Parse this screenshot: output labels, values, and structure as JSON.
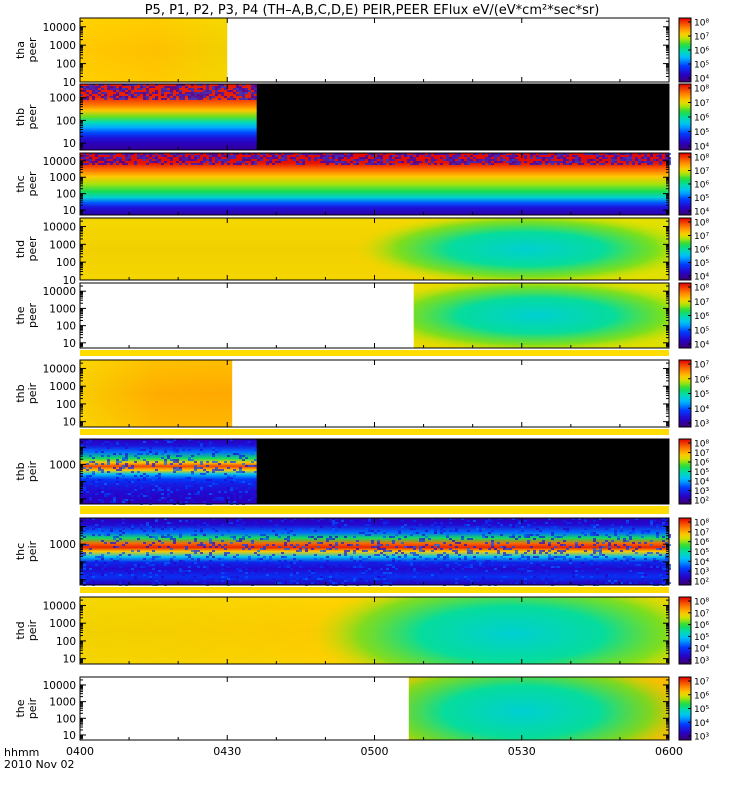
{
  "title": "P5, P1, P2, P3, P4 (TH–A,B,C,D,E) PEIR,PEER EFlux eV/(eV*cm²*sec*sr)",
  "footer": {
    "time_label": "hhmm",
    "date_label": "2010 Nov 02"
  },
  "chart_data": {
    "type": "heatmap",
    "x_unit": "hhmm",
    "x_range": [
      "0400",
      "0600"
    ],
    "x_tick_labels": [
      "0400",
      "0430",
      "0500",
      "0530",
      "0600"
    ],
    "y_scale": "log",
    "z_scale": "log",
    "panels": [
      {
        "ylabel": [
          "tha",
          "peer"
        ],
        "yticks": [
          "10",
          "100",
          "1000",
          "10000"
        ],
        "ylim": [
          10,
          30000
        ],
        "cbar_ticks": [
          "10⁴",
          "10⁵",
          "10⁶",
          "10⁷",
          "10⁸"
        ],
        "data_start": "0400",
        "data_end": "0430",
        "gap_color": "#ffffff",
        "style": "smooth",
        "hue_start": 0.76,
        "hue_end": 0.74,
        "dip": 0
      },
      {
        "ylabel": [
          "thb",
          "peer"
        ],
        "yticks": [
          "10",
          "100",
          "1000"
        ],
        "ylim": [
          5,
          4000
        ],
        "cbar_ticks": [
          "10⁴",
          "10⁵",
          "10⁶",
          "10⁷",
          "10⁸"
        ],
        "data_start": "0400",
        "data_end": "0436",
        "gap_color": "#000000",
        "style": "bands",
        "bands": [
          {
            "f": 0.0,
            "v": 0.97
          },
          {
            "f": 0.2,
            "v": 0.96
          },
          {
            "f": 0.32,
            "v": 0.86
          },
          {
            "f": 0.4,
            "v": 0.76
          },
          {
            "f": 0.5,
            "v": 0.62
          },
          {
            "f": 0.58,
            "v": 0.48
          },
          {
            "f": 0.66,
            "v": 0.36
          },
          {
            "f": 0.74,
            "v": 0.26
          },
          {
            "f": 0.82,
            "v": 0.16
          },
          {
            "f": 0.9,
            "v": 0.1
          },
          {
            "f": 1.0,
            "v": 0.06
          }
        ],
        "noise_from": 0.78
      },
      {
        "ylabel": [
          "thc",
          "peer"
        ],
        "yticks": [
          "10",
          "100",
          "1000",
          "10000"
        ],
        "ylim": [
          5,
          30000
        ],
        "cbar_ticks": [
          "10⁴",
          "10⁵",
          "10⁶",
          "10⁷",
          "10⁸"
        ],
        "data_start": "0400",
        "data_end": "0600",
        "gap_color": "#000000",
        "style": "bands",
        "bands": [
          {
            "f": 0.0,
            "v": 0.99
          },
          {
            "f": 0.16,
            "v": 0.98
          },
          {
            "f": 0.26,
            "v": 0.88
          },
          {
            "f": 0.38,
            "v": 0.76
          },
          {
            "f": 0.5,
            "v": 0.66
          },
          {
            "f": 0.62,
            "v": 0.56
          },
          {
            "f": 0.72,
            "v": 0.44
          },
          {
            "f": 0.8,
            "v": 0.28
          },
          {
            "f": 0.88,
            "v": 0.16
          },
          {
            "f": 1.0,
            "v": 0.08
          }
        ],
        "noise_from": 0.82
      },
      {
        "ylabel": [
          "thd",
          "peer"
        ],
        "yticks": [
          "10",
          "100",
          "1000",
          "10000"
        ],
        "ylim": [
          10,
          30000
        ],
        "cbar_ticks": [
          "10⁴",
          "10⁵",
          "10⁶",
          "10⁷",
          "10⁸"
        ],
        "data_start": "0400",
        "data_end": "0600",
        "gap_color": "#ffffff",
        "style": "smooth",
        "hue_start": 0.74,
        "hue_end": 0.7,
        "dip": 0.42,
        "dip_center": "0531",
        "dip_halfwidth_min": 22,
        "dip_yc": 0.5,
        "dip_ys": 0.6
      },
      {
        "ylabel": [
          "the",
          "peer"
        ],
        "yticks": [
          "10",
          "100",
          "1000",
          "10000"
        ],
        "ylim": [
          5,
          30000
        ],
        "cbar_ticks": [
          "10⁴",
          "10⁵",
          "10⁶",
          "10⁷",
          "10⁸"
        ],
        "data_start": "0508",
        "data_end": "0600",
        "gap_color": "#ffffff",
        "style": "smooth",
        "hue_start": 0.72,
        "hue_end": 0.7,
        "dip": 0.42,
        "dip_center": "0533",
        "dip_halfwidth_min": 22,
        "dip_yc": 0.5,
        "dip_ys": 0.6
      },
      {
        "ylabel": [
          "thb",
          "peir"
        ],
        "yticks": [
          "10",
          "100",
          "1000",
          "10000"
        ],
        "ylim": [
          5,
          30000
        ],
        "cbar_ticks": [
          "10³",
          "10⁴",
          "10⁵",
          "10⁶",
          "10⁷"
        ],
        "data_start": "0400",
        "data_end": "0431",
        "gap_color": "#ffffff",
        "style": "smooth",
        "hue_start": 0.75,
        "hue_end": 0.8,
        "dip": 0
      },
      {
        "ylabel": [
          "thb",
          "peir"
        ],
        "yticks": [
          "1000"
        ],
        "ylim": [
          5,
          30000
        ],
        "cbar_ticks": [
          "10²",
          "10³",
          "10⁴",
          "10⁵",
          "10⁶",
          "10⁷",
          "10⁸"
        ],
        "data_start": "0400",
        "data_end": "0436",
        "gap_color": "#000000",
        "style": "bands",
        "bands": [
          {
            "f": 0.0,
            "v": 0.1
          },
          {
            "f": 0.1,
            "v": 0.16
          },
          {
            "f": 0.2,
            "v": 0.3
          },
          {
            "f": 0.3,
            "v": 0.55
          },
          {
            "f": 0.36,
            "v": 0.75
          },
          {
            "f": 0.42,
            "v": 0.92
          },
          {
            "f": 0.48,
            "v": 0.75
          },
          {
            "f": 0.54,
            "v": 0.4
          },
          {
            "f": 0.62,
            "v": 0.24
          },
          {
            "f": 0.7,
            "v": 0.18
          },
          {
            "f": 0.82,
            "v": 0.14
          },
          {
            "f": 1.0,
            "v": 0.1
          }
        ],
        "noise_from": 0.0
      },
      {
        "ylabel": [
          "thc",
          "peir"
        ],
        "yticks": [
          "1000"
        ],
        "ylim": [
          5,
          30000
        ],
        "cbar_ticks": [
          "10²",
          "10³",
          "10⁴",
          "10⁵",
          "10⁶",
          "10⁷",
          "10⁸"
        ],
        "data_start": "0400",
        "data_end": "0600",
        "gap_color": "#ffffff",
        "style": "bands",
        "bands": [
          {
            "f": 0.0,
            "v": 0.1
          },
          {
            "f": 0.1,
            "v": 0.14
          },
          {
            "f": 0.22,
            "v": 0.3
          },
          {
            "f": 0.3,
            "v": 0.55
          },
          {
            "f": 0.38,
            "v": 0.88
          },
          {
            "f": 0.44,
            "v": 0.96
          },
          {
            "f": 0.5,
            "v": 0.75
          },
          {
            "f": 0.58,
            "v": 0.4
          },
          {
            "f": 0.66,
            "v": 0.2
          },
          {
            "f": 0.76,
            "v": 0.14
          },
          {
            "f": 0.88,
            "v": 0.22
          },
          {
            "f": 1.0,
            "v": 0.1
          }
        ],
        "noise_from": 0.0
      },
      {
        "ylabel": [
          "thd",
          "peir"
        ],
        "yticks": [
          "10",
          "100",
          "1000",
          "10000"
        ],
        "ylim": [
          5,
          30000
        ],
        "cbar_ticks": [
          "10³",
          "10⁴",
          "10⁵",
          "10⁶",
          "10⁷",
          "10⁸"
        ],
        "data_start": "0400",
        "data_end": "0600",
        "gap_color": "#ffffff",
        "style": "smooth",
        "hue_start": 0.74,
        "hue_end": 0.74,
        "dip": 0.36,
        "dip_center": "0528",
        "dip_halfwidth_min": 26,
        "dip_yc": 0.55,
        "dip_ys": 0.9
      },
      {
        "ylabel": [
          "the",
          "peir"
        ],
        "yticks": [
          "10",
          "100",
          "1000",
          "10000"
        ],
        "ylim": [
          5,
          30000
        ],
        "cbar_ticks": [
          "10³",
          "10⁴",
          "10⁵",
          "10⁶",
          "10⁷"
        ],
        "data_start": "0507",
        "data_end": "0600",
        "gap_color": "#ffffff",
        "style": "smooth",
        "hue_start": 0.8,
        "hue_end": 0.8,
        "dip": 0.4,
        "dip_center": "0530",
        "dip_halfwidth_min": 22,
        "dip_yc": 0.55,
        "dip_ys": 0.9
      }
    ]
  }
}
